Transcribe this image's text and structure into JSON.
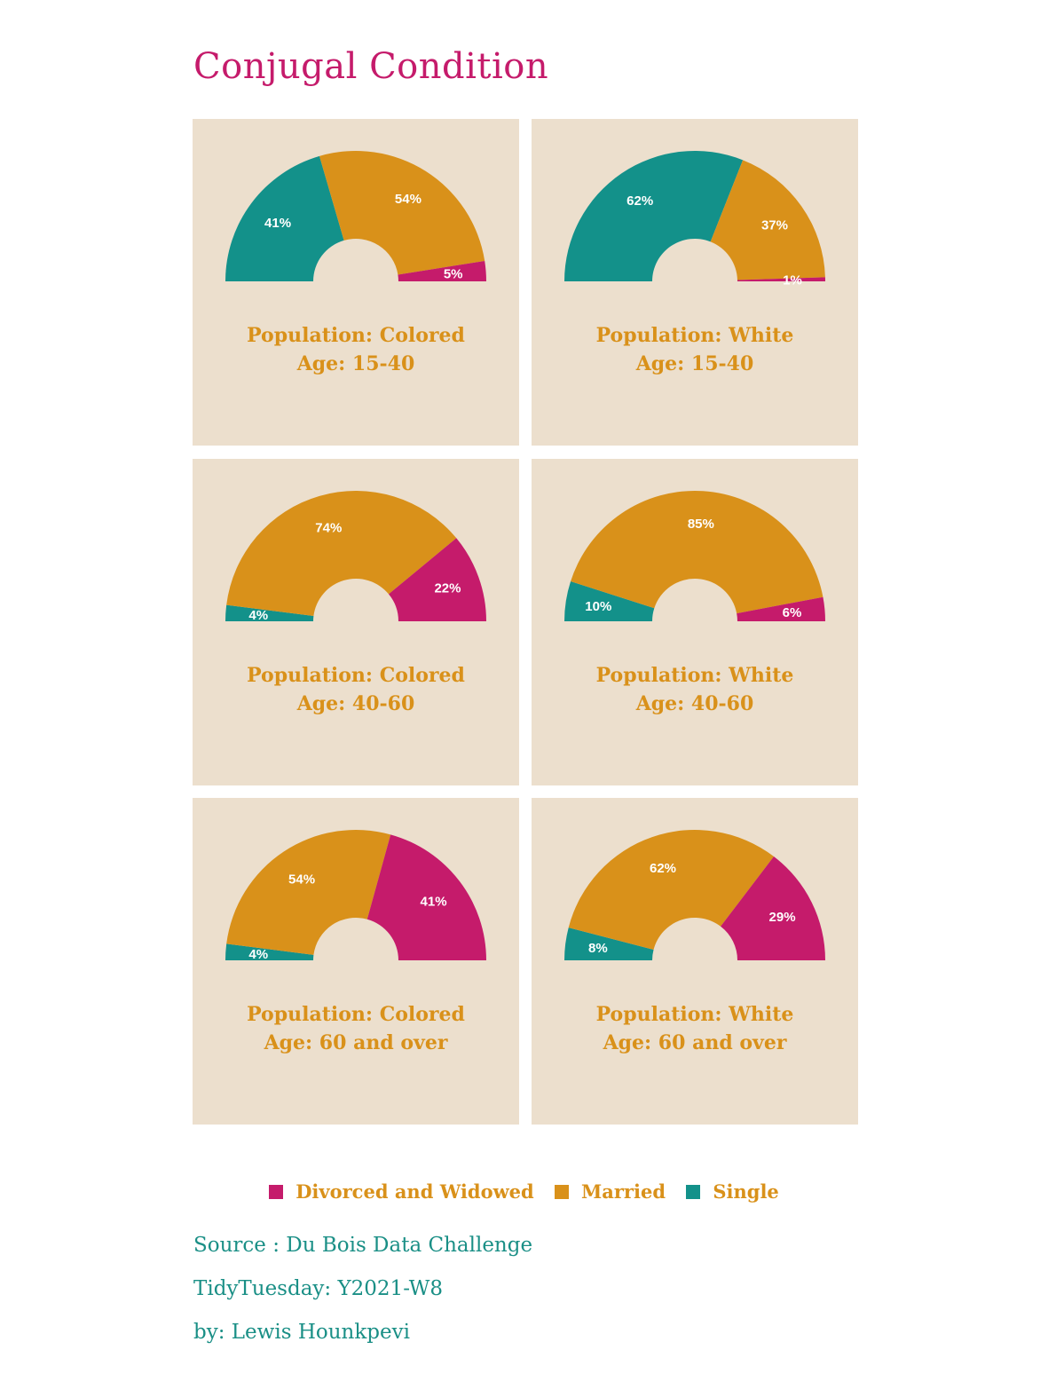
{
  "title": "Conjugal Condition",
  "colors": {
    "divorced": "#c51b6b",
    "married": "#d9911a",
    "single": "#13918a",
    "panel_bg": "#ecdfcd"
  },
  "chart_data": [
    {
      "type": "pie",
      "population_label": "Population: Colored",
      "age_label": "Age: 15-40",
      "single": 41,
      "married": 54,
      "divorced": 5,
      "labels": {
        "single": "41%",
        "married": "54%",
        "divorced": "5%"
      }
    },
    {
      "type": "pie",
      "population_label": "Population: White",
      "age_label": "Age: 15-40",
      "single": 62,
      "married": 37,
      "divorced": 1,
      "labels": {
        "single": "62%",
        "married": "37%",
        "divorced": "1%"
      }
    },
    {
      "type": "pie",
      "population_label": "Population: Colored",
      "age_label": "Age: 40-60",
      "single": 4,
      "married": 74,
      "divorced": 22,
      "labels": {
        "single": "4%",
        "married": "74%",
        "divorced": "22%"
      }
    },
    {
      "type": "pie",
      "population_label": "Population: White",
      "age_label": "Age: 40-60",
      "single": 10,
      "married": 85,
      "divorced": 6,
      "labels": {
        "single": "10%",
        "married": "85%",
        "divorced": "6%"
      }
    },
    {
      "type": "pie",
      "population_label": "Population: Colored",
      "age_label": "Age: 60 and over",
      "single": 4,
      "married": 54,
      "divorced": 41,
      "labels": {
        "single": "4%",
        "married": "54%",
        "divorced": "41%"
      }
    },
    {
      "type": "pie",
      "population_label": "Population: White",
      "age_label": "Age: 60 and over",
      "single": 8,
      "married": 62,
      "divorced": 29,
      "labels": {
        "single": "8%",
        "married": "62%",
        "divorced": "29%"
      }
    }
  ],
  "legend": {
    "divorced": "Divorced and Widowed",
    "married": "Married",
    "single": "Single"
  },
  "footer": {
    "source": "Source : Du Bois Data Challenge",
    "tidytuesday": "TidyTuesday: Y2021-W8",
    "author": "by: Lewis Hounkpevi"
  }
}
